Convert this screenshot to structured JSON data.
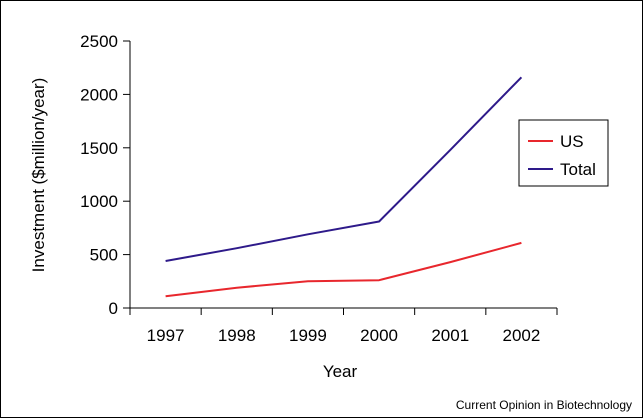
{
  "chart_data": {
    "type": "line",
    "xlabel": "Year",
    "ylabel": "Investment ($million/year)",
    "categories": [
      "1997",
      "1998",
      "1999",
      "2000",
      "2001",
      "2002"
    ],
    "ylim": [
      0,
      2500
    ],
    "yticks": [
      "0",
      "500",
      "1000",
      "1500",
      "2000",
      "2500"
    ],
    "grid": false,
    "legend_position": "right",
    "series": [
      {
        "name": "US",
        "color": "#e8272d",
        "values": [
          110,
          190,
          250,
          260,
          430,
          610
        ]
      },
      {
        "name": "Total",
        "color": "#2e1a8a",
        "values": [
          440,
          560,
          690,
          810,
          1480,
          2160
        ]
      }
    ]
  },
  "credit": "Current Opinion in Biotechnology"
}
